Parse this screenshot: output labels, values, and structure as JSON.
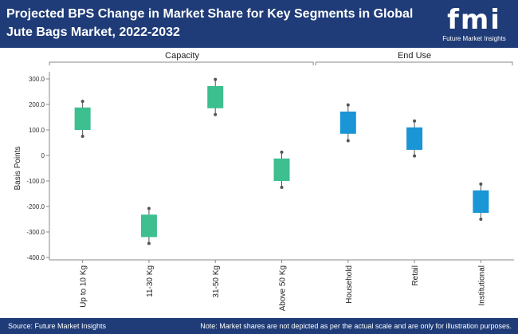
{
  "header": {
    "title": "Projected BPS Change in Market Share for Key Segments in Global Jute Bags Market, 2022-2032",
    "logo_text": "fmi",
    "logo_sub": "Future Market Insights"
  },
  "footer": {
    "source": "Source: Future Market Insights",
    "note": "Note: Market shares are not depicted as per the actual scale and are only for illustration purposes."
  },
  "colors": {
    "header_bg": "#1f3c78",
    "capacity": "#3dbf8f",
    "end_use": "#1a95d6",
    "whisker": "#555555"
  },
  "chart_data": {
    "type": "box",
    "title": "Projected BPS Change in Market Share for Key Segments in Global Jute Bags Market, 2022-2032",
    "ylabel": "Basis Points",
    "ylim": [
      -400,
      300
    ],
    "yticks": [
      300,
      200,
      100,
      0,
      -100,
      -200,
      -300,
      -400
    ],
    "ytick_labels": [
      "300.0",
      "200.0",
      "100.0",
      "0",
      "-100.0",
      "-200.0",
      "-300.0",
      "-400.0"
    ],
    "groups": [
      {
        "name": "Capacity",
        "categories": [
          "Up to 10 Kg",
          "11-30 Kg",
          "31-50 Kg",
          "Above 50 Kg"
        ]
      },
      {
        "name": "End Use",
        "categories": [
          "Household",
          "Retail",
          "Institutional"
        ]
      }
    ],
    "boxes": [
      {
        "category": "Up to 10 Kg",
        "group": "Capacity",
        "low": 75,
        "q1": 100,
        "q3": 188,
        "high": 212
      },
      {
        "category": "11-30 Kg",
        "group": "Capacity",
        "low": -345,
        "q1": -320,
        "q3": -232,
        "high": -208
      },
      {
        "category": "31-50 Kg",
        "group": "Capacity",
        "low": 160,
        "q1": 185,
        "q3": 272,
        "high": 298
      },
      {
        "category": "Above 50 Kg",
        "group": "Capacity",
        "low": -125,
        "q1": -100,
        "q3": -12,
        "high": 13
      },
      {
        "category": "Household",
        "group": "End Use",
        "low": 58,
        "q1": 85,
        "q3": 172,
        "high": 198
      },
      {
        "category": "Retail",
        "group": "End Use",
        "low": -2,
        "q1": 22,
        "q3": 110,
        "high": 135
      },
      {
        "category": "Institutional",
        "group": "End Use",
        "low": -250,
        "q1": -225,
        "q3": -137,
        "high": -112
      }
    ]
  }
}
